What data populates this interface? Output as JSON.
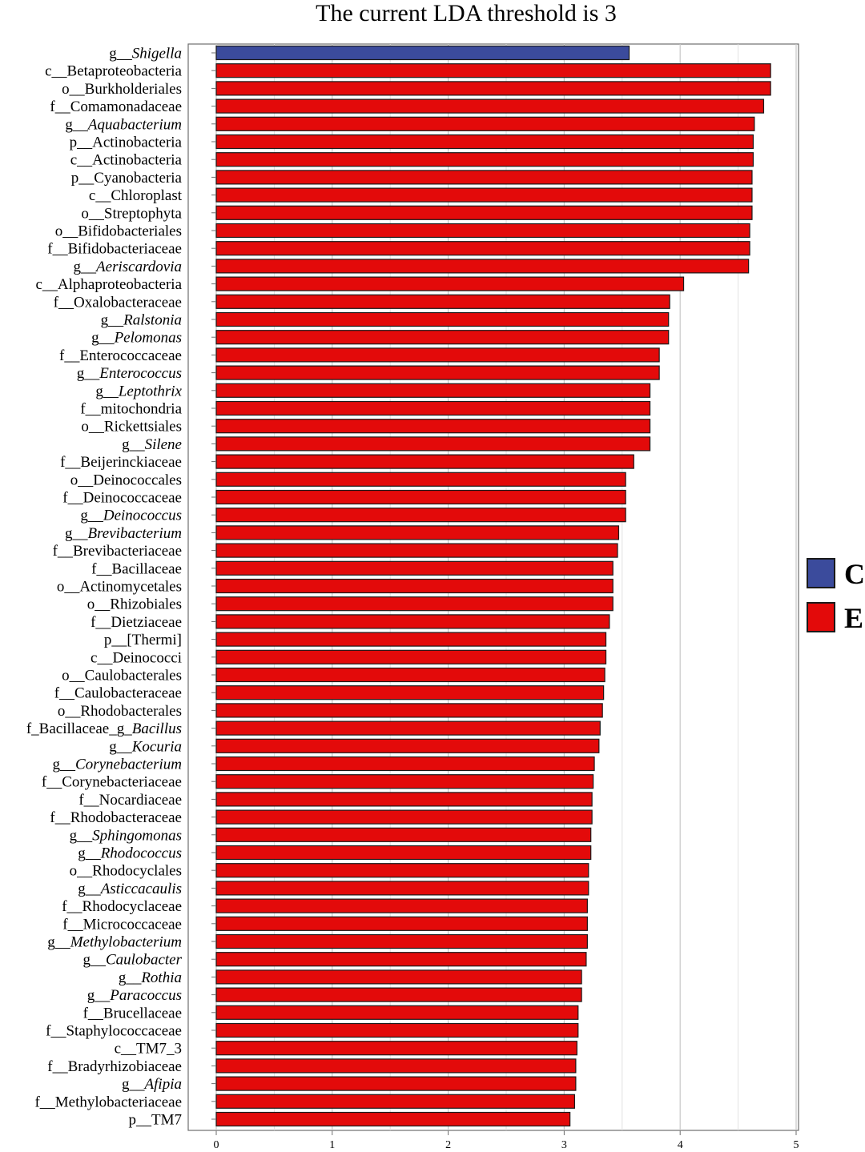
{
  "chart_data": {
    "type": "bar",
    "orientation": "horizontal",
    "title": "The current LDA threshold is 3",
    "xlabel": "",
    "ylabel": "",
    "xlim": [
      0,
      5
    ],
    "xticks": [
      "0",
      "1",
      "2",
      "3",
      "4",
      "5"
    ],
    "grid": true,
    "legend_position": "right",
    "colors": {
      "C": "#3B4B9C",
      "E": "#E30A0A"
    },
    "legend": [
      {
        "name": "C"
      },
      {
        "name": "E"
      }
    ],
    "categories": [
      {
        "label": "g__Shigella",
        "rank": "g__",
        "name": "Shigella",
        "italic": true,
        "value": 3.56,
        "group": "C"
      },
      {
        "label": "c__Betaproteobacteria",
        "rank": "c__",
        "name": "Betaproteobacteria",
        "italic": false,
        "value": 4.78,
        "group": "E"
      },
      {
        "label": "o__Burkholderiales",
        "rank": "o__",
        "name": "Burkholderiales",
        "italic": false,
        "value": 4.78,
        "group": "E"
      },
      {
        "label": "f__Comamonadaceae",
        "rank": "f__",
        "name": "Comamonadaceae",
        "italic": false,
        "value": 4.72,
        "group": "E"
      },
      {
        "label": "g__Aquabacterium",
        "rank": "g__",
        "name": "Aquabacterium",
        "italic": true,
        "value": 4.64,
        "group": "E"
      },
      {
        "label": "p__Actinobacteria",
        "rank": "p__",
        "name": "Actinobacteria",
        "italic": false,
        "value": 4.63,
        "group": "E"
      },
      {
        "label": "c__Actinobacteria",
        "rank": "c__",
        "name": "Actinobacteria",
        "italic": false,
        "value": 4.63,
        "group": "E"
      },
      {
        "label": "p__Cyanobacteria",
        "rank": "p__",
        "name": "Cyanobacteria",
        "italic": false,
        "value": 4.62,
        "group": "E"
      },
      {
        "label": "c__Chloroplast",
        "rank": "c__",
        "name": "Chloroplast",
        "italic": false,
        "value": 4.62,
        "group": "E"
      },
      {
        "label": "o__Streptophyta",
        "rank": "o__",
        "name": "Streptophyta",
        "italic": false,
        "value": 4.62,
        "group": "E"
      },
      {
        "label": "o__Bifidobacteriales",
        "rank": "o__",
        "name": "Bifidobacteriales",
        "italic": false,
        "value": 4.6,
        "group": "E"
      },
      {
        "label": "f__Bifidobacteriaceae",
        "rank": "f__",
        "name": "Bifidobacteriaceae",
        "italic": false,
        "value": 4.6,
        "group": "E"
      },
      {
        "label": "g__Aeriscardovia",
        "rank": "g__",
        "name": "Aeriscardovia",
        "italic": true,
        "value": 4.59,
        "group": "E"
      },
      {
        "label": "c__Alphaproteobacteria",
        "rank": "c__",
        "name": "Alphaproteobacteria",
        "italic": false,
        "value": 4.03,
        "group": "E"
      },
      {
        "label": "f__Oxalobacteraceae",
        "rank": "f__",
        "name": "Oxalobacteraceae",
        "italic": false,
        "value": 3.91,
        "group": "E"
      },
      {
        "label": "g__Ralstonia",
        "rank": "g__",
        "name": "Ralstonia",
        "italic": true,
        "value": 3.9,
        "group": "E"
      },
      {
        "label": "g__Pelomonas",
        "rank": "g__",
        "name": "Pelomonas",
        "italic": true,
        "value": 3.9,
        "group": "E"
      },
      {
        "label": "f__Enterococcaceae",
        "rank": "f__",
        "name": "Enterococcaceae",
        "italic": false,
        "value": 3.82,
        "group": "E"
      },
      {
        "label": "g__Enterococcus",
        "rank": "g__",
        "name": "Enterococcus",
        "italic": true,
        "value": 3.82,
        "group": "E"
      },
      {
        "label": "g__Leptothrix",
        "rank": "g__",
        "name": "Leptothrix",
        "italic": true,
        "value": 3.74,
        "group": "E"
      },
      {
        "label": "f__mitochondria",
        "rank": "f__",
        "name": "mitochondria",
        "italic": false,
        "value": 3.74,
        "group": "E"
      },
      {
        "label": "o__Rickettsiales",
        "rank": "o__",
        "name": "Rickettsiales",
        "italic": false,
        "value": 3.74,
        "group": "E"
      },
      {
        "label": "g__Silene",
        "rank": "g__",
        "name": "Silene",
        "italic": true,
        "value": 3.74,
        "group": "E"
      },
      {
        "label": "f__Beijerinckiaceae",
        "rank": "f__",
        "name": "Beijerinckiaceae",
        "italic": false,
        "value": 3.6,
        "group": "E"
      },
      {
        "label": "o__Deinococcales",
        "rank": "o__",
        "name": "Deinococcales",
        "italic": false,
        "value": 3.53,
        "group": "E"
      },
      {
        "label": "f__Deinococcaceae",
        "rank": "f__",
        "name": "Deinococcaceae",
        "italic": false,
        "value": 3.53,
        "group": "E"
      },
      {
        "label": "g__Deinococcus",
        "rank": "g__",
        "name": "Deinococcus",
        "italic": true,
        "value": 3.53,
        "group": "E"
      },
      {
        "label": "g__Brevibacterium",
        "rank": "g__",
        "name": "Brevibacterium",
        "italic": true,
        "value": 3.47,
        "group": "E"
      },
      {
        "label": "f__Brevibacteriaceae",
        "rank": "f__",
        "name": "Brevibacteriaceae",
        "italic": false,
        "value": 3.46,
        "group": "E"
      },
      {
        "label": "f__Bacillaceae",
        "rank": "f__",
        "name": "Bacillaceae",
        "italic": false,
        "value": 3.42,
        "group": "E"
      },
      {
        "label": "o__Actinomycetales",
        "rank": "o__",
        "name": "Actinomycetales",
        "italic": false,
        "value": 3.42,
        "group": "E"
      },
      {
        "label": "o__Rhizobiales",
        "rank": "o__",
        "name": "Rhizobiales",
        "italic": false,
        "value": 3.42,
        "group": "E"
      },
      {
        "label": "f__Dietziaceae",
        "rank": "f__",
        "name": "Dietziaceae",
        "italic": false,
        "value": 3.39,
        "group": "E"
      },
      {
        "label": "p__[Thermi]",
        "rank": "p__",
        "name": "[Thermi]",
        "italic": false,
        "value": 3.36,
        "group": "E"
      },
      {
        "label": "c__Deinococci",
        "rank": "c__",
        "name": "Deinococci",
        "italic": false,
        "value": 3.36,
        "group": "E"
      },
      {
        "label": "o__Caulobacterales",
        "rank": "o__",
        "name": "Caulobacterales",
        "italic": false,
        "value": 3.35,
        "group": "E"
      },
      {
        "label": "f__Caulobacteraceae",
        "rank": "f__",
        "name": "Caulobacteraceae",
        "italic": false,
        "value": 3.34,
        "group": "E"
      },
      {
        "label": "o__Rhodobacterales",
        "rank": "o__",
        "name": "Rhodobacterales",
        "italic": false,
        "value": 3.33,
        "group": "E"
      },
      {
        "label": "f_Bacillaceae_g_Bacillus",
        "rank": "f_Bacillaceae_g_",
        "name": "Bacillus",
        "italic": true,
        "value": 3.31,
        "group": "E"
      },
      {
        "label": "g__Kocuria",
        "rank": "g__",
        "name": "Kocuria",
        "italic": true,
        "value": 3.3,
        "group": "E"
      },
      {
        "label": "g__Corynebacterium",
        "rank": "g__",
        "name": "Corynebacterium",
        "italic": true,
        "value": 3.26,
        "group": "E"
      },
      {
        "label": "f__Corynebacteriaceae",
        "rank": "f__",
        "name": "Corynebacteriaceae",
        "italic": false,
        "value": 3.25,
        "group": "E"
      },
      {
        "label": "f__Nocardiaceae",
        "rank": "f__",
        "name": "Nocardiaceae",
        "italic": false,
        "value": 3.24,
        "group": "E"
      },
      {
        "label": "f__Rhodobacteraceae",
        "rank": "f__",
        "name": "Rhodobacteraceae",
        "italic": false,
        "value": 3.24,
        "group": "E"
      },
      {
        "label": "g__Sphingomonas",
        "rank": "g__",
        "name": "Sphingomonas",
        "italic": true,
        "value": 3.23,
        "group": "E"
      },
      {
        "label": "g__Rhodococcus",
        "rank": "g__",
        "name": "Rhodococcus",
        "italic": true,
        "value": 3.23,
        "group": "E"
      },
      {
        "label": "o__Rhodocyclales",
        "rank": "o__",
        "name": "Rhodocyclales",
        "italic": false,
        "value": 3.21,
        "group": "E"
      },
      {
        "label": "g__Asticcacaulis",
        "rank": "g__",
        "name": "Asticcacaulis",
        "italic": true,
        "value": 3.21,
        "group": "E"
      },
      {
        "label": "f__Rhodocyclaceae",
        "rank": "f__",
        "name": "Rhodocyclaceae",
        "italic": false,
        "value": 3.2,
        "group": "E"
      },
      {
        "label": "f__Micrococcaceae",
        "rank": "f__",
        "name": "Micrococcaceae",
        "italic": false,
        "value": 3.2,
        "group": "E"
      },
      {
        "label": "g__Methylobacterium",
        "rank": "g__",
        "name": "Methylobacterium",
        "italic": true,
        "value": 3.2,
        "group": "E"
      },
      {
        "label": "g__Caulobacter",
        "rank": "g__",
        "name": "Caulobacter",
        "italic": true,
        "value": 3.19,
        "group": "E"
      },
      {
        "label": "g__Rothia",
        "rank": "g__",
        "name": "Rothia",
        "italic": true,
        "value": 3.15,
        "group": "E"
      },
      {
        "label": "g__Paracoccus",
        "rank": "g__",
        "name": "Paracoccus",
        "italic": true,
        "value": 3.15,
        "group": "E"
      },
      {
        "label": "f__Brucellaceae",
        "rank": "f__",
        "name": "Brucellaceae",
        "italic": false,
        "value": 3.12,
        "group": "E"
      },
      {
        "label": "f__Staphylococcaceae",
        "rank": "f__",
        "name": "Staphylococcaceae",
        "italic": false,
        "value": 3.12,
        "group": "E"
      },
      {
        "label": "c__TM7_3",
        "rank": "c__",
        "name": "TM7_3",
        "italic": false,
        "value": 3.11,
        "group": "E"
      },
      {
        "label": "f__Bradyrhizobiaceae",
        "rank": "f__",
        "name": "Bradyrhizobiaceae",
        "italic": false,
        "value": 3.1,
        "group": "E"
      },
      {
        "label": "g__Afipia",
        "rank": "g__",
        "name": "Afipia",
        "italic": true,
        "value": 3.1,
        "group": "E"
      },
      {
        "label": "f__Methylobacteriaceae",
        "rank": "f__",
        "name": "Methylobacteriaceae",
        "italic": false,
        "value": 3.09,
        "group": "E"
      },
      {
        "label": "p__TM7",
        "rank": "p__",
        "name": "TM7",
        "italic": false,
        "value": 3.05,
        "group": "E"
      }
    ]
  }
}
